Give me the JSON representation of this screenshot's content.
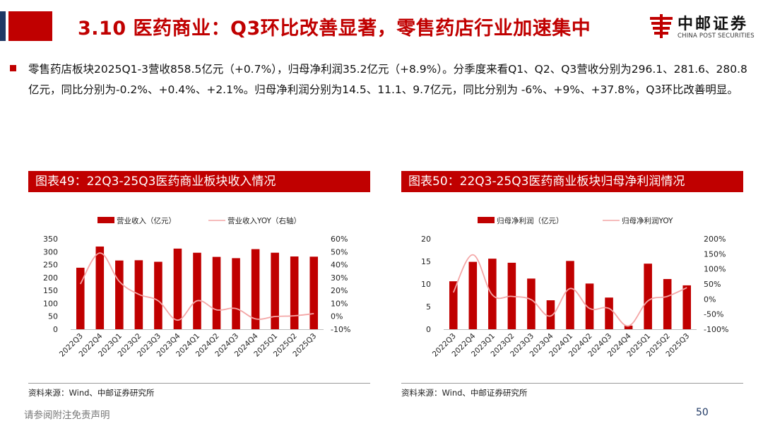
{
  "slide": {
    "title": "3.10 医药商业：Q3环比改善显著，零售药店行业加速集中",
    "bullet": "零售药店板块2025Q1-3营收858.5亿元（+0.7%），归母净利润35.2亿元（+8.9%）。分季度来看Q1、Q2、Q3营收分别为296.1、281.6、280.8亿元，同比分别为-0.2%、+0.4%、+2.1%。归母净利润分别为14.5、11.1、9.7亿元，同比分别为 -6%、+9%、+37.8%，Q3环比改善明显。",
    "disclaimer": "请参阅附注免责声明",
    "page_number": "50"
  },
  "logo": {
    "cn": "中邮证券",
    "en": "CHINA POST SECURITIES",
    "color": "#c00000"
  },
  "panels": [
    {
      "header": "图表49：22Q3-25Q3医药商业板块收入情况",
      "source": "资料来源：Wind、中邮证券研究所"
    },
    {
      "header": "图表50：22Q3-25Q3医药商业板块归母净利润情况",
      "source": "资料来源：Wind、中邮证券研究所"
    }
  ],
  "colors": {
    "accent": "#c00000",
    "navy": "#1f3864",
    "yoy_line": "#f4a6a6"
  },
  "chart_data": [
    {
      "type": "bar",
      "categories": [
        "2022Q3",
        "2022Q4",
        "2023Q1",
        "2023Q2",
        "2023Q3",
        "2023Q4",
        "2024Q1",
        "2024Q2",
        "2024Q3",
        "2024Q4",
        "2025Q1",
        "2025Q2",
        "2025Q3"
      ],
      "series": [
        {
          "name": "营业收入（亿元）",
          "type": "bar",
          "axis": "left",
          "values": [
            238,
            320,
            266,
            267,
            261,
            312,
            296,
            280,
            275,
            310,
            296.1,
            281.6,
            280.8
          ]
        },
        {
          "name": "营业收入YOY（右轴）",
          "type": "line",
          "axis": "right",
          "values": [
            25,
            49,
            27,
            17,
            12,
            -3,
            12,
            5,
            6,
            -2,
            -0.2,
            0.4,
            2.1
          ]
        }
      ],
      "ylim": [
        0,
        350
      ],
      "yticks": [
        "350",
        "300",
        "250",
        "200",
        "150",
        "100",
        "50",
        "0"
      ],
      "y2lim": [
        -10,
        60
      ],
      "y2ticks": [
        "60%",
        "50%",
        "40%",
        "30%",
        "20%",
        "10%",
        "0%",
        "-10%"
      ],
      "legend": "top",
      "grid": false
    },
    {
      "type": "bar",
      "categories": [
        "2022Q3",
        "2022Q4",
        "2023Q1",
        "2023Q2",
        "2023Q3",
        "2023Q4",
        "2024Q1",
        "2024Q2",
        "2024Q3",
        "2024Q4",
        "2025Q1",
        "2025Q2",
        "2025Q3"
      ],
      "series": [
        {
          "name": "归母净利润（亿元）",
          "type": "bar",
          "axis": "left",
          "values": [
            10.6,
            14.9,
            15.6,
            14.7,
            11.2,
            6.4,
            15.1,
            10.1,
            7.0,
            0.8,
            14.5,
            11.1,
            9.7
          ]
        },
        {
          "name": "归母净利润YOY",
          "type": "line",
          "axis": "right",
          "values": [
            22,
            147,
            14,
            9,
            -2,
            -56,
            35,
            -31,
            -31,
            -89,
            -6,
            9,
            37.8
          ]
        }
      ],
      "ylim": [
        0,
        20
      ],
      "yticks": [
        "20",
        "15",
        "10",
        "5",
        "0"
      ],
      "y2lim": [
        -100,
        200
      ],
      "y2ticks": [
        "200%",
        "150%",
        "100%",
        "50%",
        "0%",
        "-50%",
        "-100%"
      ],
      "legend": "top",
      "grid": false
    }
  ]
}
